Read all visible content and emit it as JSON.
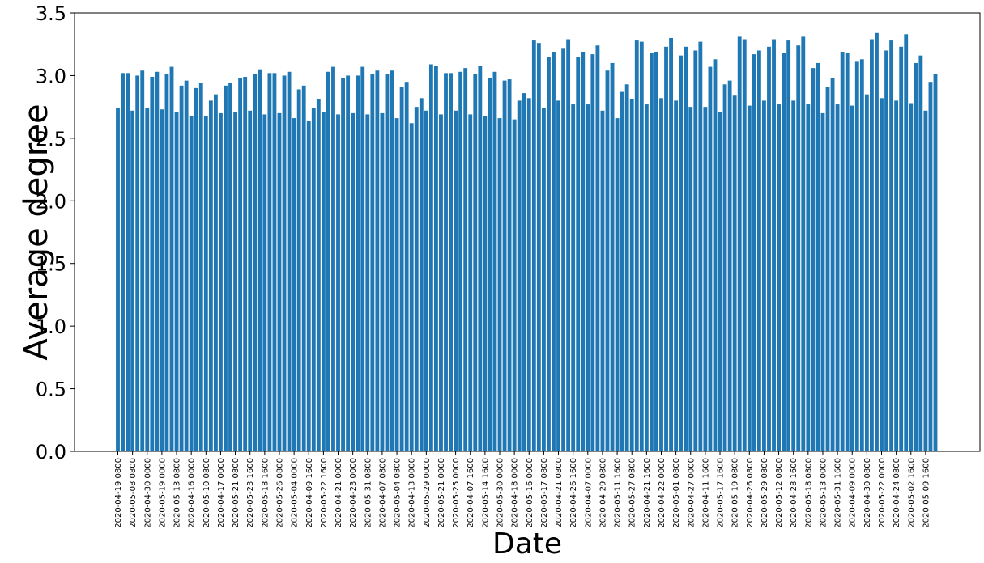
{
  "chart_data": {
    "type": "bar",
    "xlabel": "Date",
    "ylabel": "Average degree",
    "ylim": [
      0,
      3.5
    ],
    "yticks": [
      "0.0",
      "0.5",
      "1.0",
      "1.5",
      "2.0",
      "2.5",
      "3.0",
      "3.5"
    ],
    "bar_color": "#1f77b4",
    "tick_labels": [
      "2020-04-19 0800",
      "2020-05-08 0800",
      "2020-04-30 0000",
      "2020-05-19 0000",
      "2020-05-13 0800",
      "2020-04-16 0000",
      "2020-05-10 0800",
      "2020-04-17 0000",
      "2020-05-21 0800",
      "2020-05-23 1600",
      "2020-05-18 1600",
      "2020-05-26 0800",
      "2020-05-04 0000",
      "2020-04-09 1600",
      "2020-05-22 1600",
      "2020-04-21 0000",
      "2020-04-23 0000",
      "2020-05-31 0800",
      "2020-04-07 0800",
      "2020-05-04 0800",
      "2020-04-13 0000",
      "2020-05-29 0000",
      "2020-05-21 0000",
      "2020-05-25 0000",
      "2020-04-07 1600",
      "2020-05-14 1600",
      "2020-05-30 0000",
      "2020-04-18 0000",
      "2020-05-16 0000",
      "2020-05-17 0800",
      "2020-04-21 0800",
      "2020-04-26 1600",
      "2020-04-07 0000",
      "2020-04-29 0800",
      "2020-05-11 1600",
      "2020-05-27 0800",
      "2020-04-21 1600",
      "2020-04-22 0000",
      "2020-05-01 0800",
      "2020-04-27 0000",
      "2020-04-11 1600",
      "2020-05-17 1600",
      "2020-05-19 0800",
      "2020-04-26 0800",
      "2020-05-29 0800",
      "2020-05-12 0800",
      "2020-04-28 1600",
      "2020-05-18 0800",
      "2020-05-13 0000",
      "2020-05-31 1600",
      "2020-04-09 0000",
      "2020-04-30 0800",
      "2020-05-22 0000",
      "2020-04-24 0800",
      "2020-05-02 1600",
      "2020-05-09 1600"
    ],
    "values": [
      2.74,
      3.02,
      3.02,
      2.72,
      3.0,
      3.04,
      2.74,
      2.99,
      3.03,
      2.73,
      3.01,
      3.07,
      2.71,
      2.92,
      2.96,
      2.68,
      2.9,
      2.94,
      2.68,
      2.8,
      2.85,
      2.7,
      2.92,
      2.94,
      2.71,
      2.98,
      2.99,
      2.72,
      3.01,
      3.05,
      2.69,
      3.02,
      3.02,
      2.7,
      3.0,
      3.03,
      2.66,
      2.89,
      2.92,
      2.64,
      2.74,
      2.81,
      2.71,
      3.03,
      3.07,
      2.69,
      2.98,
      3.0,
      2.7,
      3.0,
      3.07,
      2.69,
      3.01,
      3.04,
      2.7,
      3.01,
      3.04,
      2.66,
      2.91,
      2.95,
      2.62,
      2.75,
      2.82,
      2.72,
      3.09,
      3.08,
      2.69,
      3.02,
      3.02,
      2.72,
      3.03,
      3.06,
      2.69,
      3.01,
      3.08,
      2.68,
      2.98,
      3.03,
      2.66,
      2.96,
      2.97,
      2.65,
      2.8,
      2.86,
      2.82,
      3.28,
      3.26,
      2.74,
      3.15,
      3.19,
      2.8,
      3.22,
      3.29,
      2.77,
      3.15,
      3.19,
      2.77,
      3.17,
      3.24,
      2.72,
      3.04,
      3.1,
      2.66,
      2.87,
      2.93,
      2.81,
      3.28,
      3.27,
      2.77,
      3.18,
      3.19,
      2.82,
      3.23,
      3.3,
      2.8,
      3.16,
      3.23,
      2.75,
      3.2,
      3.27,
      2.75,
      3.07,
      3.13,
      2.71,
      2.93,
      2.96,
      2.84,
      3.31,
      3.29,
      2.76,
      3.17,
      3.2,
      2.8,
      3.23,
      3.29,
      2.77,
      3.18,
      3.28,
      2.8,
      3.24,
      3.31,
      2.77,
      3.06,
      3.1,
      2.7,
      2.91,
      2.98,
      2.77,
      3.19,
      3.18,
      2.76,
      3.11,
      3.13,
      2.85,
      3.29,
      3.34,
      2.82,
      3.2,
      3.28,
      2.8,
      3.23,
      3.33,
      2.78,
      3.1,
      3.16,
      2.72,
      2.95,
      3.01
    ]
  }
}
